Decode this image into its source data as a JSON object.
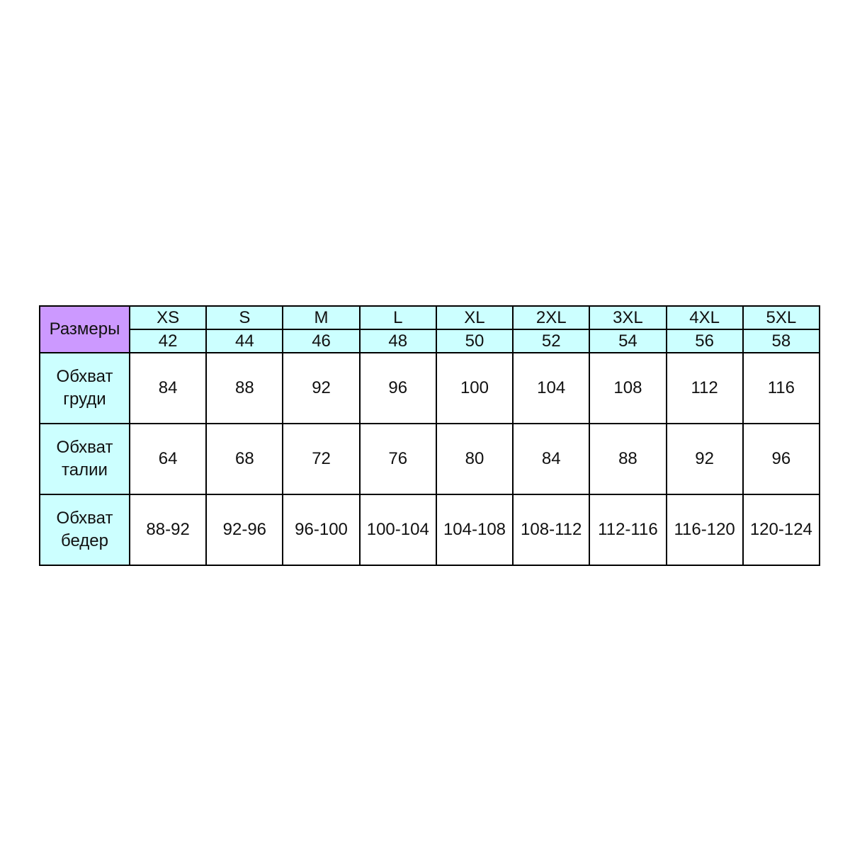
{
  "corner_label": "Размеры",
  "sizes": [
    "XS",
    "S",
    "M",
    "L",
    "XL",
    "2XL",
    "3XL",
    "4XL",
    "5XL"
  ],
  "ru_sizes": [
    "42",
    "44",
    "46",
    "48",
    "50",
    "52",
    "54",
    "56",
    "58"
  ],
  "rows": [
    {
      "label_line1": "Обхват",
      "label_line2": "груди",
      "values": [
        "84",
        "88",
        "92",
        "96",
        "100",
        "104",
        "108",
        "112",
        "116"
      ]
    },
    {
      "label_line1": "Обхват",
      "label_line2": "талии",
      "values": [
        "64",
        "68",
        "72",
        "76",
        "80",
        "84",
        "88",
        "92",
        "96"
      ]
    },
    {
      "label_line1": "Обхват",
      "label_line2": "бедер",
      "values": [
        "88-92",
        "92-96",
        "96-100",
        "100-104",
        "104-108",
        "108-112",
        "112-116",
        "116-120",
        "120-124"
      ]
    }
  ],
  "colors": {
    "corner": "#cc99ff",
    "header": "#ccffff",
    "border": "#000000"
  }
}
